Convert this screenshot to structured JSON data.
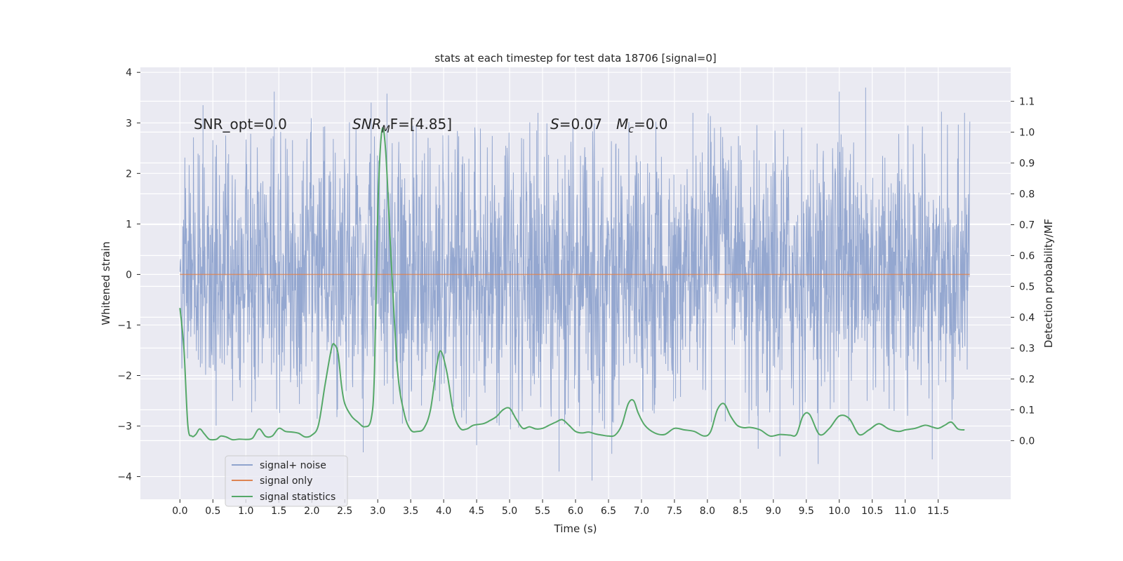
{
  "chart_data": {
    "type": "line",
    "title": "stats at each timestep for test data 18706 [signal=0]",
    "xlabel": "Time (s)",
    "ylabel": "Whitened strain",
    "y2label": "Detection probability/MF",
    "xlim": [
      -0.6,
      12.6
    ],
    "ylim": [
      -4.45,
      4.1
    ],
    "y2lim": [
      -0.19,
      1.21
    ],
    "x_ticks": [
      0.0,
      0.5,
      1.0,
      1.5,
      2.0,
      2.5,
      3.0,
      3.5,
      4.0,
      4.5,
      5.0,
      5.5,
      6.0,
      6.5,
      7.0,
      7.5,
      8.0,
      8.5,
      9.0,
      9.5,
      10.0,
      10.5,
      11.0,
      11.5
    ],
    "x_tick_labels": [
      "0.0",
      "0.5",
      "1.0",
      "1.5",
      "2.0",
      "2.5",
      "3.0",
      "3.5",
      "4.0",
      "4.5",
      "5.0",
      "5.5",
      "6.0",
      "6.5",
      "7.0",
      "7.5",
      "8.0",
      "8.5",
      "9.0",
      "9.5",
      "10.0",
      "10.5",
      "11.0",
      "11.5"
    ],
    "y_ticks": [
      -4,
      -3,
      -2,
      -1,
      0,
      1,
      2,
      3,
      4
    ],
    "y_tick_labels": [
      "−4",
      "−3",
      "−2",
      "−1",
      "0",
      "1",
      "2",
      "3",
      "4"
    ],
    "y2_ticks": [
      0.0,
      0.1,
      0.2,
      0.3,
      0.4,
      0.5,
      0.6,
      0.7,
      0.8,
      0.9,
      1.0,
      1.1
    ],
    "y2_tick_labels": [
      "0.0",
      "0.1",
      "0.2",
      "0.3",
      "0.4",
      "0.5",
      "0.6",
      "0.7",
      "0.8",
      "0.9",
      "1.0",
      "1.1"
    ],
    "grid": true,
    "legend_position": "lower-left",
    "annotations": {
      "snr_opt": "SNR_opt=0.0",
      "snr_mf_main": "SNR",
      "snr_mf_sub": "M",
      "snr_mf_rest": "F=[4.85]",
      "s_var": "S",
      "s_rest": "=0.07",
      "mc_main": "M",
      "mc_sub": "c",
      "mc_rest": "=0.0"
    },
    "series": [
      {
        "name": "signal+ noise",
        "color": "#8fa3cd",
        "axis": "left",
        "kind": "noise",
        "x_range": [
          0.0,
          11.98
        ],
        "envelope": {
          "x": [
            0.0,
            0.3,
            1.0,
            1.5,
            2.0,
            2.5,
            3.0,
            3.5,
            4.0,
            4.5,
            5.0,
            5.5,
            6.0,
            6.5,
            7.0,
            7.5,
            8.0,
            8.5,
            9.0,
            9.5,
            10.0,
            10.5,
            11.0,
            11.5,
            11.98
          ],
          "upper_typical": [
            1.9,
            2.5,
            2.4,
            2.4,
            2.5,
            2.4,
            2.5,
            2.4,
            2.5,
            2.4,
            2.5,
            2.4,
            2.6,
            2.4,
            2.5,
            2.5,
            2.6,
            2.4,
            2.5,
            2.5,
            2.6,
            2.5,
            2.5,
            2.6,
            2.5
          ],
          "lower_typical": [
            -2.0,
            -2.4,
            -2.4,
            -2.4,
            -2.4,
            -2.4,
            -2.5,
            -2.4,
            -2.4,
            -2.4,
            -2.5,
            -2.4,
            -2.4,
            -2.5,
            -2.4,
            -2.4,
            -2.4,
            -2.4,
            -2.5,
            -2.5,
            -2.4,
            -2.4,
            -2.4,
            -2.5,
            -2.3
          ]
        },
        "peaks": [
          {
            "x": 0.35,
            "y": 3.35
          },
          {
            "x": 1.43,
            "y": 3.62
          },
          {
            "x": 2.9,
            "y": 3.4
          },
          {
            "x": 3.14,
            "y": 3.58
          },
          {
            "x": 5.43,
            "y": 3.2
          },
          {
            "x": 7.78,
            "y": 3.2
          },
          {
            "x": 10.0,
            "y": 3.62
          },
          {
            "x": 10.4,
            "y": 3.7
          },
          {
            "x": 11.55,
            "y": 3.22
          },
          {
            "x": 11.9,
            "y": 3.2
          },
          {
            "x": 2.78,
            "y": -3.52
          },
          {
            "x": 5.75,
            "y": -3.9
          },
          {
            "x": 6.25,
            "y": -4.08
          },
          {
            "x": 9.68,
            "y": -3.75
          },
          {
            "x": 9.1,
            "y": -3.6
          },
          {
            "x": 11.41,
            "y": -3.66
          },
          {
            "x": 4.5,
            "y": -3.38
          },
          {
            "x": 8.77,
            "y": -3.45
          },
          {
            "x": 6.55,
            "y": -3.55
          }
        ]
      },
      {
        "name": "signal only",
        "color": "#dd8452",
        "axis": "left",
        "x": [
          0.0,
          11.98
        ],
        "y": [
          0.0,
          0.0
        ]
      },
      {
        "name": "signal statistics",
        "color": "#55a868",
        "axis": "right",
        "x": [
          0.0,
          0.06,
          0.12,
          0.18,
          0.24,
          0.3,
          0.37,
          0.44,
          0.5,
          0.56,
          0.62,
          0.7,
          0.8,
          0.9,
          1.0,
          1.1,
          1.2,
          1.3,
          1.4,
          1.5,
          1.6,
          1.7,
          1.8,
          1.9,
          2.0,
          2.1,
          2.2,
          2.3,
          2.35,
          2.4,
          2.45,
          2.5,
          2.6,
          2.7,
          2.8,
          2.9,
          2.95,
          3.0,
          3.06,
          3.12,
          3.2,
          3.3,
          3.4,
          3.5,
          3.6,
          3.7,
          3.8,
          3.9,
          3.96,
          4.05,
          4.15,
          4.25,
          4.35,
          4.45,
          4.6,
          4.7,
          4.8,
          4.9,
          5.0,
          5.1,
          5.2,
          5.3,
          5.4,
          5.5,
          5.6,
          5.7,
          5.8,
          5.9,
          6.0,
          6.1,
          6.2,
          6.3,
          6.4,
          6.5,
          6.6,
          6.7,
          6.8,
          6.88,
          6.95,
          7.05,
          7.2,
          7.35,
          7.5,
          7.65,
          7.8,
          7.95,
          8.05,
          8.15,
          8.25,
          8.35,
          8.45,
          8.55,
          8.65,
          8.8,
          8.95,
          9.1,
          9.25,
          9.35,
          9.45,
          9.55,
          9.7,
          9.85,
          10.0,
          10.15,
          10.3,
          10.45,
          10.6,
          10.75,
          10.9,
          11.0,
          11.15,
          11.3,
          11.4,
          11.5,
          11.6,
          11.7,
          11.8,
          11.9
        ],
        "y": [
          0.43,
          0.3,
          0.05,
          0.015,
          0.02,
          0.038,
          0.022,
          0.005,
          0.003,
          0.005,
          0.015,
          0.012,
          0.003,
          0.005,
          0.004,
          0.008,
          0.038,
          0.014,
          0.015,
          0.04,
          0.03,
          0.028,
          0.024,
          0.012,
          0.018,
          0.05,
          0.18,
          0.3,
          0.31,
          0.28,
          0.18,
          0.12,
          0.08,
          0.06,
          0.045,
          0.07,
          0.22,
          0.74,
          1.0,
          0.94,
          0.6,
          0.23,
          0.09,
          0.035,
          0.03,
          0.04,
          0.1,
          0.25,
          0.29,
          0.22,
          0.09,
          0.04,
          0.038,
          0.05,
          0.055,
          0.065,
          0.078,
          0.1,
          0.105,
          0.07,
          0.04,
          0.045,
          0.038,
          0.04,
          0.05,
          0.06,
          0.068,
          0.05,
          0.03,
          0.025,
          0.028,
          0.022,
          0.018,
          0.015,
          0.018,
          0.05,
          0.12,
          0.13,
          0.09,
          0.05,
          0.025,
          0.02,
          0.04,
          0.035,
          0.03,
          0.015,
          0.03,
          0.1,
          0.12,
          0.08,
          0.05,
          0.042,
          0.043,
          0.035,
          0.015,
          0.02,
          0.018,
          0.02,
          0.08,
          0.085,
          0.02,
          0.04,
          0.08,
          0.072,
          0.02,
          0.035,
          0.055,
          0.038,
          0.03,
          0.035,
          0.04,
          0.05,
          0.045,
          0.04,
          0.05,
          0.06,
          0.038,
          0.035
        ]
      }
    ]
  }
}
